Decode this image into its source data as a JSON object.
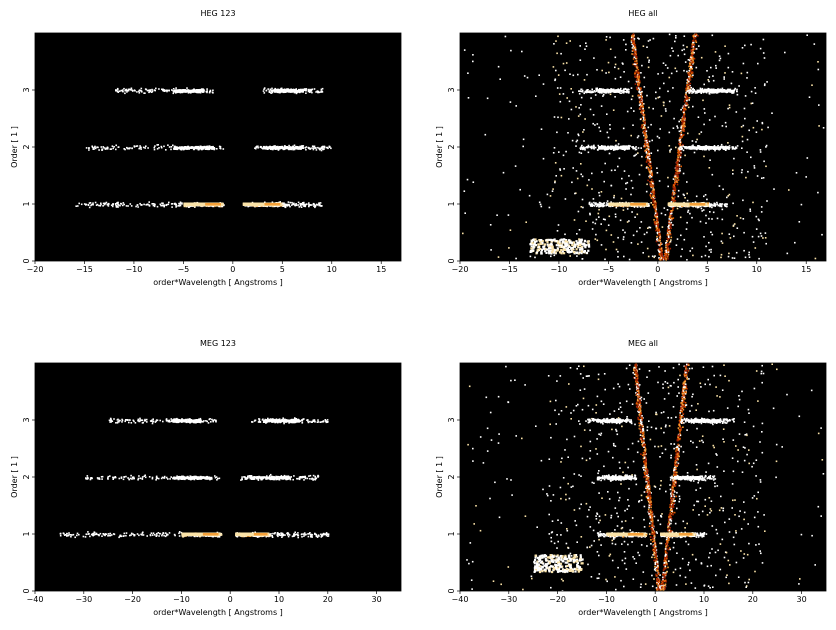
{
  "chart_data": [
    {
      "type": "heatmap",
      "title": "HEG 123",
      "xlabel": "order*Wavelength [ Angstroms ]",
      "ylabel": "Order [ 1 ]",
      "xlim": [
        -20,
        17
      ],
      "ylim": [
        0,
        4
      ],
      "xticks": [
        -20,
        -15,
        -10,
        -5,
        0,
        5,
        10,
        15
      ],
      "yticks": [
        0,
        1,
        2,
        3
      ],
      "bands": [
        {
          "order": 1,
          "x_range": [
            -16,
            -1
          ],
          "dense_range": [
            -5,
            -1
          ],
          "density": "medium"
        },
        {
          "order": 1,
          "x_range": [
            1,
            9
          ],
          "dense_range": [
            1,
            5
          ],
          "density": "medium"
        },
        {
          "order": 2,
          "x_range": [
            -15,
            -1
          ],
          "dense_range": [
            -6,
            -2
          ],
          "density": "low"
        },
        {
          "order": 2,
          "x_range": [
            2,
            10
          ],
          "dense_range": [
            3,
            7
          ],
          "density": "low"
        },
        {
          "order": 3,
          "x_range": [
            -12,
            -2
          ],
          "dense_range": [
            -6,
            -3
          ],
          "density": "low"
        },
        {
          "order": 3,
          "x_range": [
            3,
            9
          ],
          "dense_range": [
            4,
            7
          ],
          "density": "low"
        }
      ],
      "background": false
    },
    {
      "type": "heatmap",
      "title": "HEG all",
      "xlabel": "order*Wavelength [ Angstroms ]",
      "ylabel": "Order [ 1 ]",
      "xlim": [
        -20,
        17
      ],
      "ylim": [
        0,
        4
      ],
      "xticks": [
        -20,
        -15,
        -10,
        -5,
        0,
        5,
        10,
        15
      ],
      "yticks": [
        0,
        1,
        2,
        3
      ],
      "bands": [
        {
          "order": 1,
          "x_range": [
            -7,
            -1
          ],
          "dense_range": [
            -5,
            -1
          ],
          "density": "medium"
        },
        {
          "order": 1,
          "x_range": [
            1,
            7
          ],
          "dense_range": [
            1,
            5
          ],
          "density": "medium"
        },
        {
          "order": 2,
          "x_range": [
            -8,
            -2
          ],
          "dense_range": [
            -6,
            -3
          ],
          "density": "low"
        },
        {
          "order": 2,
          "x_range": [
            2,
            8
          ],
          "dense_range": [
            3,
            7
          ],
          "density": "low"
        },
        {
          "order": 3,
          "x_range": [
            -8,
            -3
          ],
          "dense_range": [
            -6,
            -4
          ],
          "density": "low"
        },
        {
          "order": 3,
          "x_range": [
            3,
            8
          ],
          "dense_range": [
            4,
            7
          ],
          "density": "low"
        }
      ],
      "background": true,
      "wedge": {
        "half_width_at_top": 3,
        "center": 0.5
      },
      "lower_blob": {
        "x_range": [
          -13,
          -7
        ],
        "y_range": [
          0.15,
          0.4
        ]
      }
    },
    {
      "type": "heatmap",
      "title": "MEG 123",
      "xlabel": "order*Wavelength [ Angstroms ]",
      "ylabel": "Order [ 1 ]",
      "xlim": [
        -40,
        35
      ],
      "ylim": [
        0,
        4
      ],
      "xticks": [
        -40,
        -30,
        -20,
        -10,
        0,
        10,
        20,
        30
      ],
      "yticks": [
        0,
        1,
        2,
        3
      ],
      "bands": [
        {
          "order": 1,
          "x_range": [
            -35,
            -2
          ],
          "dense_range": [
            -10,
            -2
          ],
          "density": "medium"
        },
        {
          "order": 1,
          "x_range": [
            1,
            20
          ],
          "dense_range": [
            1,
            8
          ],
          "density": "medium"
        },
        {
          "order": 2,
          "x_range": [
            -30,
            -2
          ],
          "dense_range": [
            -12,
            -4
          ],
          "density": "low"
        },
        {
          "order": 2,
          "x_range": [
            2,
            18
          ],
          "dense_range": [
            4,
            12
          ],
          "density": "low"
        },
        {
          "order": 3,
          "x_range": [
            -25,
            -3
          ],
          "dense_range": [
            -12,
            -6
          ],
          "density": "low"
        },
        {
          "order": 3,
          "x_range": [
            4,
            20
          ],
          "dense_range": [
            7,
            14
          ],
          "density": "low"
        }
      ],
      "background": false
    },
    {
      "type": "heatmap",
      "title": "MEG all",
      "xlabel": "order*Wavelength [ Angstroms ]",
      "ylabel": "Order [ 1 ]",
      "xlim": [
        -40,
        35
      ],
      "ylim": [
        0,
        4
      ],
      "xticks": [
        -40,
        -30,
        -20,
        -10,
        0,
        10,
        20,
        30
      ],
      "yticks": [
        0,
        1,
        2,
        3
      ],
      "bands": [
        {
          "order": 1,
          "x_range": [
            -12,
            -2
          ],
          "dense_range": [
            -10,
            -2
          ],
          "density": "medium"
        },
        {
          "order": 1,
          "x_range": [
            1,
            10
          ],
          "dense_range": [
            1,
            8
          ],
          "density": "medium"
        },
        {
          "order": 2,
          "x_range": [
            -12,
            -4
          ],
          "dense_range": [
            -10,
            -5
          ],
          "density": "low"
        },
        {
          "order": 2,
          "x_range": [
            3,
            12
          ],
          "dense_range": [
            4,
            9
          ],
          "density": "low"
        },
        {
          "order": 3,
          "x_range": [
            -14,
            -5
          ],
          "dense_range": [
            -12,
            -7
          ],
          "density": "low"
        },
        {
          "order": 3,
          "x_range": [
            5,
            16
          ],
          "dense_range": [
            7,
            13
          ],
          "density": "low"
        }
      ],
      "background": true,
      "wedge": {
        "half_width_at_top": 5,
        "center": 1
      },
      "lower_blob": {
        "x_range": [
          -25,
          -15
        ],
        "y_range": [
          0.35,
          0.65
        ]
      }
    }
  ],
  "colors": {
    "plot_background": "#000000",
    "hot": [
      "#5a0a00",
      "#a02000",
      "#e05a00",
      "#f7a23a",
      "#fbe3a8",
      "#ffffff"
    ]
  }
}
